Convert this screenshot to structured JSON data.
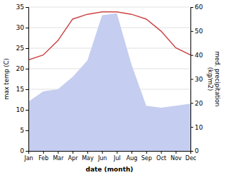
{
  "chart_data": {
    "type": "line",
    "xlabel": "date (month)",
    "ylabel": "max temp (C)",
    "y2label": "med. precipitation\n(kg/m2)",
    "categories": [
      "Jan",
      "Feb",
      "Mar",
      "Apr",
      "May",
      "Jun",
      "Jul",
      "Aug",
      "Sep",
      "Oct",
      "Nov",
      "Dec"
    ],
    "series": [
      {
        "type": "area",
        "color": "#c5cef0",
        "values": [
          12,
          14.5,
          15,
          18,
          22,
          33,
          33.5,
          21,
          11,
          10.5,
          11,
          11.5
        ]
      },
      {
        "type": "line",
        "axis": "y2",
        "color": "#cc4444",
        "values": [
          38,
          40,
          46,
          55,
          57,
          58,
          58,
          57,
          55,
          50,
          43,
          40
        ]
      }
    ],
    "ylim": [
      0,
      35
    ],
    "yticks": [
      0,
      5,
      10,
      15,
      20,
      25,
      30,
      35
    ],
    "y2lim": [
      0,
      60
    ],
    "y2ticks": [
      0,
      10,
      20,
      30,
      40,
      50,
      60
    ],
    "grid": true
  }
}
